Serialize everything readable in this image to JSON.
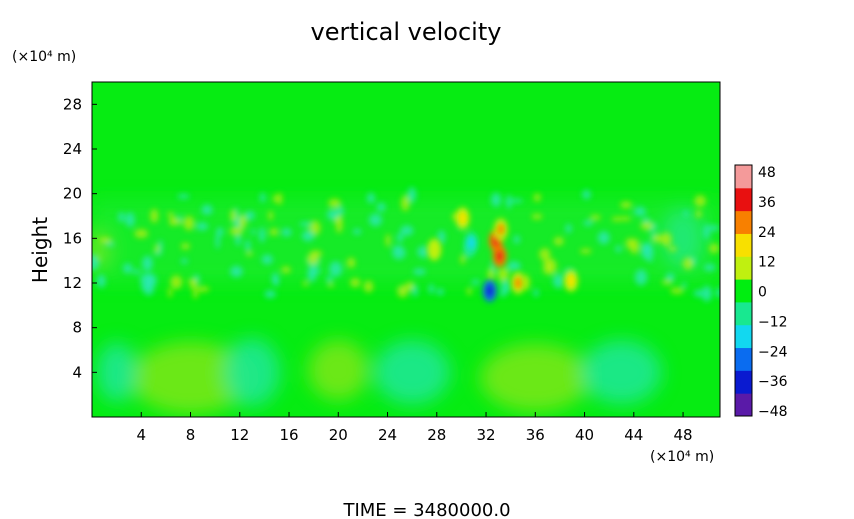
{
  "chart_data": {
    "type": "heatmap",
    "title": "vertical velocity",
    "ylabel": "Height",
    "y_unit": "(×10⁴ m)",
    "x_unit": "(×10⁴ m)",
    "xlim": [
      0,
      51
    ],
    "ylim": [
      0,
      30
    ],
    "x_ticks": [
      4,
      8,
      12,
      16,
      20,
      24,
      28,
      32,
      36,
      40,
      44,
      48
    ],
    "y_ticks": [
      4,
      8,
      12,
      16,
      20,
      24,
      28
    ],
    "colorbar": {
      "levels": [
        48,
        36,
        24,
        12,
        0,
        -12,
        -24,
        -36,
        -48
      ],
      "min": -48,
      "max": 48,
      "colors": [
        "#5a1aa8",
        "#0a1ad0",
        "#0a6cf0",
        "#12d8f0",
        "#18e890",
        "#00ee10",
        "#c0f010",
        "#f8e000",
        "#f88000",
        "#e81010",
        "#f49a9a"
      ]
    },
    "features": [
      {
        "x": 32.8,
        "y": 15.8,
        "value": 42
      },
      {
        "x": 33.1,
        "y": 14.4,
        "value": 36
      },
      {
        "x": 32.3,
        "y": 11.3,
        "value": -40
      },
      {
        "x": 30.1,
        "y": 17.8,
        "value": 22
      },
      {
        "x": 34.6,
        "y": 12.0,
        "value": 24
      },
      {
        "x": 30.8,
        "y": 15.6,
        "value": -18
      },
      {
        "x": 38.9,
        "y": 12.2,
        "value": 18
      },
      {
        "x": 33.2,
        "y": 16.8,
        "value": 26
      },
      {
        "x": 27.8,
        "y": 15.0,
        "value": 12
      }
    ]
  },
  "footer": {
    "time_label": "TIME  =  3480000.0"
  }
}
